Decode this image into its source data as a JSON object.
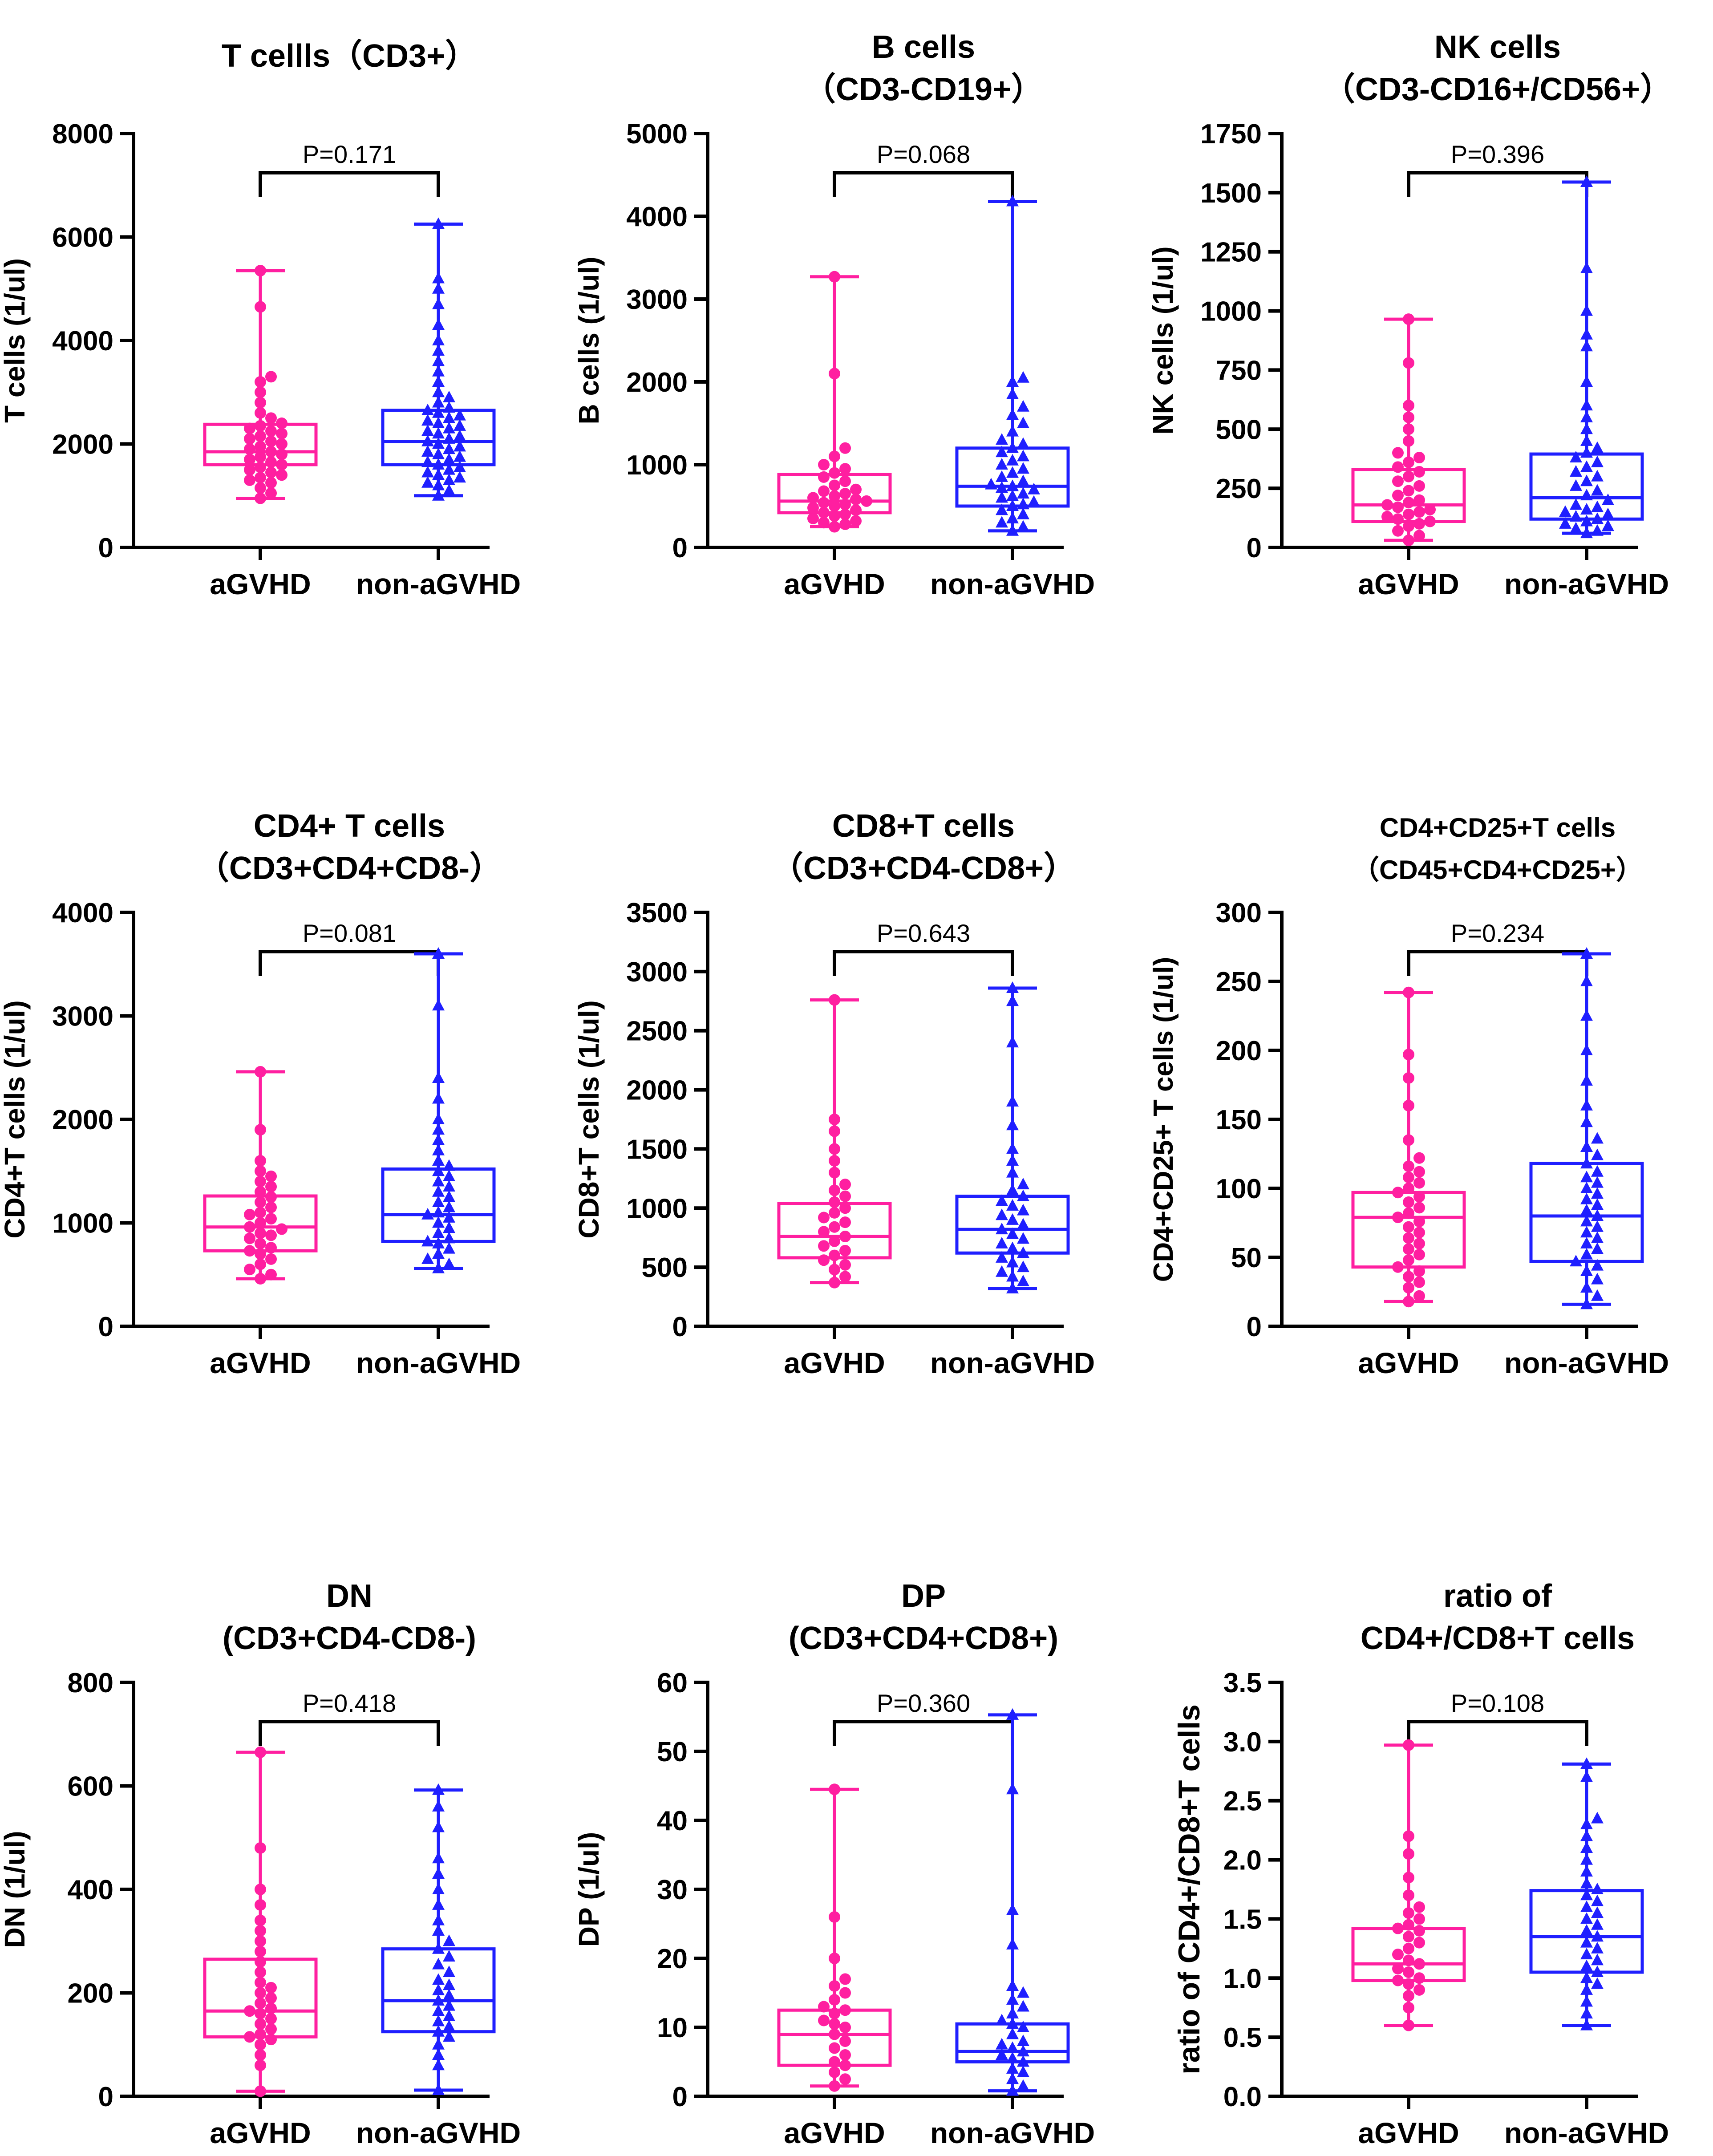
{
  "figure": {
    "groups": [
      "aGVHD",
      "non-aGVHD"
    ],
    "colors": {
      "aGVHD": "#ff1fa0",
      "non_aGVHD": "#1f1fff",
      "axis": "#000000"
    }
  },
  "chart_data": [
    {
      "type": "box",
      "title_lines": [
        "T cellls（CD3+）"
      ],
      "ylabel": "T cells (1/ul)",
      "ylim": [
        0,
        8000
      ],
      "yticks": [
        0,
        2000,
        4000,
        6000,
        8000
      ],
      "tick_labels": [
        "0",
        "2000",
        "4000",
        "6000",
        "8000"
      ],
      "p_value": "P=0.171",
      "categories": [
        "aGVHD",
        "non-aGVHD"
      ],
      "series": [
        {
          "name": "aGVHD",
          "min": 950,
          "q1": 1600,
          "median": 1850,
          "q3": 2380,
          "max": 5350,
          "points": [
            950,
            1050,
            1150,
            1250,
            1300,
            1350,
            1400,
            1450,
            1500,
            1550,
            1600,
            1650,
            1700,
            1750,
            1800,
            1850,
            1900,
            1950,
            2000,
            2050,
            2100,
            2150,
            2200,
            2250,
            2300,
            2350,
            2400,
            2500,
            2600,
            2800,
            3000,
            3200,
            3300,
            4650,
            5350
          ]
        },
        {
          "name": "non-aGVHD",
          "min": 1000,
          "q1": 1600,
          "median": 2050,
          "q3": 2650,
          "max": 6250,
          "points": [
            1000,
            1100,
            1200,
            1250,
            1300,
            1350,
            1400,
            1450,
            1500,
            1550,
            1600,
            1650,
            1700,
            1750,
            1800,
            1850,
            1900,
            1950,
            2000,
            2050,
            2100,
            2150,
            2200,
            2250,
            2300,
            2350,
            2400,
            2450,
            2500,
            2550,
            2600,
            2650,
            2700,
            2800,
            2900,
            3000,
            3200,
            3400,
            3600,
            3800,
            4000,
            4300,
            4700,
            5000,
            5200,
            6250
          ]
        }
      ]
    },
    {
      "type": "box",
      "title_lines": [
        "B cells",
        "（CD3-CD19+）"
      ],
      "ylabel": "B cells (1/ul)",
      "ylim": [
        0,
        5000
      ],
      "yticks": [
        0,
        1000,
        2000,
        3000,
        4000,
        5000
      ],
      "tick_labels": [
        "0",
        "1000",
        "2000",
        "3000",
        "4000",
        "5000"
      ],
      "p_value": "P=0.068",
      "categories": [
        "aGVHD",
        "non-aGVHD"
      ],
      "series": [
        {
          "name": "aGVHD",
          "min": 250,
          "q1": 420,
          "median": 560,
          "q3": 880,
          "max": 3270,
          "points": [
            250,
            280,
            300,
            320,
            350,
            380,
            400,
            420,
            450,
            480,
            500,
            520,
            540,
            560,
            580,
            600,
            620,
            650,
            680,
            700,
            750,
            800,
            850,
            900,
            950,
            1000,
            1100,
            1200,
            2100,
            3270
          ]
        },
        {
          "name": "non-aGVHD",
          "min": 200,
          "q1": 500,
          "median": 740,
          "q3": 1200,
          "max": 4180,
          "points": [
            200,
            250,
            300,
            350,
            400,
            450,
            500,
            520,
            550,
            600,
            620,
            650,
            700,
            720,
            740,
            760,
            800,
            850,
            900,
            950,
            1000,
            1050,
            1100,
            1150,
            1200,
            1250,
            1300,
            1400,
            1500,
            1600,
            1700,
            1850,
            2000,
            2050,
            4180
          ]
        }
      ]
    },
    {
      "type": "box",
      "title_lines": [
        "NK cells",
        "（CD3-CD16+/CD56+）"
      ],
      "ylabel": "NK cells (1/ul)",
      "ylim": [
        0,
        1750
      ],
      "yticks": [
        0,
        250,
        500,
        750,
        1000,
        1250,
        1500,
        1750
      ],
      "tick_labels": [
        "0",
        "250",
        "500",
        "750",
        "1000",
        "1250",
        "1500",
        "1750"
      ],
      "p_value": "P=0.396",
      "categories": [
        "aGVHD",
        "non-aGVHD"
      ],
      "series": [
        {
          "name": "aGVHD",
          "min": 30,
          "q1": 110,
          "median": 180,
          "q3": 330,
          "max": 965,
          "points": [
            30,
            50,
            70,
            90,
            100,
            110,
            120,
            130,
            140,
            150,
            160,
            170,
            180,
            190,
            200,
            220,
            240,
            260,
            280,
            300,
            320,
            340,
            360,
            380,
            400,
            450,
            500,
            550,
            600,
            780,
            965
          ]
        },
        {
          "name": "non-aGVHD",
          "min": 60,
          "q1": 120,
          "median": 210,
          "q3": 395,
          "max": 1545,
          "points": [
            60,
            70,
            80,
            90,
            100,
            110,
            120,
            130,
            140,
            150,
            160,
            170,
            180,
            200,
            220,
            240,
            260,
            280,
            300,
            320,
            340,
            360,
            380,
            400,
            420,
            450,
            500,
            550,
            600,
            700,
            850,
            900,
            1000,
            1180,
            1545
          ]
        }
      ]
    },
    {
      "type": "box",
      "title_lines": [
        "CD4+ T cells",
        "（CD3+CD4+CD8-）"
      ],
      "ylabel": "CD4+T cells (1/ul)",
      "ylim": [
        0,
        4000
      ],
      "yticks": [
        0,
        1000,
        2000,
        3000,
        4000
      ],
      "tick_labels": [
        "0",
        "1000",
        "2000",
        "3000",
        "4000"
      ],
      "p_value": "P=0.081",
      "categories": [
        "aGVHD",
        "non-aGVHD"
      ],
      "series": [
        {
          "name": "aGVHD",
          "min": 460,
          "q1": 730,
          "median": 960,
          "q3": 1260,
          "max": 2460,
          "points": [
            460,
            500,
            550,
            600,
            650,
            700,
            730,
            760,
            800,
            850,
            880,
            900,
            940,
            960,
            1000,
            1040,
            1080,
            1100,
            1150,
            1200,
            1250,
            1300,
            1350,
            1400,
            1450,
            1500,
            1600,
            1900,
            2460
          ]
        },
        {
          "name": "non-aGVHD",
          "min": 560,
          "q1": 820,
          "median": 1080,
          "q3": 1520,
          "max": 3600,
          "points": [
            560,
            600,
            650,
            700,
            750,
            800,
            820,
            850,
            900,
            950,
            1000,
            1050,
            1080,
            1100,
            1150,
            1200,
            1250,
            1300,
            1350,
            1400,
            1450,
            1500,
            1550,
            1600,
            1700,
            1800,
            1900,
            2000,
            2200,
            2400,
            3100,
            3600
          ]
        }
      ]
    },
    {
      "type": "box",
      "title_lines": [
        "CD8+T cells",
        "（CD3+CD4-CD8+）"
      ],
      "ylabel": "CD8+T cells (1/ul)",
      "ylim": [
        0,
        3500
      ],
      "yticks": [
        0,
        500,
        1000,
        1500,
        2000,
        2500,
        3000,
        3500
      ],
      "tick_labels": [
        "0",
        "500",
        "1000",
        "1500",
        "2000",
        "2500",
        "3000",
        "3500"
      ],
      "p_value": "P=0.643",
      "categories": [
        "aGVHD",
        "non-aGVHD"
      ],
      "series": [
        {
          "name": "aGVHD",
          "min": 370,
          "q1": 580,
          "median": 760,
          "q3": 1040,
          "max": 2760,
          "points": [
            370,
            420,
            480,
            520,
            560,
            600,
            640,
            680,
            720,
            760,
            800,
            840,
            880,
            920,
            960,
            1000,
            1050,
            1100,
            1150,
            1200,
            1300,
            1400,
            1500,
            1650,
            1750,
            2760
          ]
        },
        {
          "name": "non-aGVHD",
          "min": 320,
          "q1": 620,
          "median": 820,
          "q3": 1100,
          "max": 2860,
          "points": [
            320,
            380,
            420,
            460,
            500,
            540,
            580,
            620,
            660,
            700,
            740,
            780,
            820,
            860,
            900,
            940,
            980,
            1020,
            1060,
            1100,
            1150,
            1200,
            1300,
            1400,
            1500,
            1700,
            1900,
            2400,
            2750,
            2860
          ]
        }
      ]
    },
    {
      "type": "box",
      "title_lines": [
        "CD4+CD25+T cells",
        "（CD45+CD4+CD25+）"
      ],
      "ylabel": "CD4+CD25+ T cells (1/ul)",
      "ylim": [
        0,
        300
      ],
      "yticks": [
        0,
        50,
        100,
        150,
        200,
        250,
        300
      ],
      "tick_labels": [
        "0",
        "50",
        "100",
        "150",
        "200",
        "250",
        "300"
      ],
      "p_value": "P=0.234",
      "categories": [
        "aGVHD",
        "non-aGVHD"
      ],
      "series": [
        {
          "name": "aGVHD",
          "min": 18,
          "q1": 43,
          "median": 79,
          "q3": 97,
          "max": 242,
          "points": [
            18,
            22,
            28,
            32,
            36,
            40,
            43,
            48,
            52,
            56,
            60,
            64,
            68,
            72,
            76,
            79,
            82,
            86,
            90,
            94,
            97,
            100,
            104,
            108,
            112,
            116,
            122,
            135,
            160,
            180,
            197,
            242
          ]
        },
        {
          "name": "non-aGVHD",
          "min": 16,
          "q1": 47,
          "median": 80,
          "q3": 118,
          "max": 270,
          "points": [
            16,
            22,
            28,
            34,
            40,
            44,
            47,
            52,
            56,
            60,
            64,
            68,
            72,
            76,
            80,
            84,
            88,
            92,
            96,
            100,
            104,
            108,
            112,
            118,
            124,
            130,
            136,
            148,
            160,
            178,
            200,
            225,
            250,
            270
          ]
        }
      ]
    },
    {
      "type": "box",
      "title_lines": [
        "DN",
        "(CD3+CD4-CD8-)"
      ],
      "ylabel": "DN (1/ul)",
      "ylim": [
        0,
        800
      ],
      "yticks": [
        0,
        200,
        400,
        600,
        800
      ],
      "tick_labels": [
        "0",
        "200",
        "400",
        "600",
        "800"
      ],
      "p_value": "P=0.418",
      "categories": [
        "aGVHD",
        "non-aGVHD"
      ],
      "series": [
        {
          "name": "aGVHD",
          "min": 10,
          "q1": 115,
          "median": 165,
          "q3": 265,
          "max": 665,
          "points": [
            10,
            60,
            80,
            100,
            110,
            115,
            120,
            130,
            140,
            150,
            160,
            165,
            170,
            180,
            190,
            200,
            210,
            220,
            240,
            260,
            280,
            300,
            320,
            340,
            370,
            400,
            480,
            665
          ]
        },
        {
          "name": "non-aGVHD",
          "min": 12,
          "q1": 125,
          "median": 185,
          "q3": 285,
          "max": 592,
          "points": [
            12,
            60,
            80,
            100,
            115,
            125,
            135,
            145,
            155,
            165,
            175,
            185,
            195,
            205,
            215,
            225,
            240,
            255,
            270,
            285,
            300,
            320,
            340,
            370,
            400,
            430,
            460,
            520,
            560,
            592
          ]
        }
      ]
    },
    {
      "type": "box",
      "title_lines": [
        "DP",
        "(CD3+CD4+CD8+)"
      ],
      "ylabel": "DP (1/ul)",
      "ylim": [
        0,
        60
      ],
      "yticks": [
        0,
        10,
        20,
        30,
        40,
        50,
        60
      ],
      "tick_labels": [
        "0",
        "10",
        "20",
        "30",
        "40",
        "50",
        "60"
      ],
      "p_value": "P=0.360",
      "categories": [
        "aGVHD",
        "non-aGVHD"
      ],
      "series": [
        {
          "name": "aGVHD",
          "min": 1.5,
          "q1": 4.5,
          "median": 9,
          "q3": 12.5,
          "max": 44.5,
          "points": [
            1.5,
            2.5,
            3.5,
            4.5,
            5,
            6,
            7,
            8,
            9,
            10,
            10.5,
            11,
            12,
            12.5,
            13,
            14,
            15,
            16,
            17,
            20,
            26,
            44.5
          ]
        },
        {
          "name": "non-aGVHD",
          "min": 0.8,
          "q1": 5,
          "median": 6.5,
          "q3": 10.5,
          "max": 55.3,
          "points": [
            0.8,
            1.5,
            2.5,
            3.5,
            4,
            5,
            5.5,
            6,
            6.5,
            7,
            7.5,
            8,
            9,
            10,
            10.5,
            11,
            12,
            13,
            14,
            15,
            16,
            22,
            27,
            44.5,
            55.3
          ]
        }
      ]
    },
    {
      "type": "box",
      "title_lines": [
        "ratio of",
        "CD4+/CD8+T cells"
      ],
      "ylabel": "ratio of CD4+/CD8+T cells",
      "ylim": [
        0,
        3.5
      ],
      "yticks": [
        0,
        0.5,
        1,
        1.5,
        2,
        2.5,
        3,
        3.5
      ],
      "tick_labels": [
        "0.0",
        "0.5",
        "1.0",
        "1.5",
        "2.0",
        "2.5",
        "3.0",
        "3.5"
      ],
      "p_value": "P=0.108",
      "categories": [
        "aGVHD",
        "non-aGVHD"
      ],
      "series": [
        {
          "name": "aGVHD",
          "min": 0.6,
          "q1": 0.98,
          "median": 1.12,
          "q3": 1.42,
          "max": 2.97,
          "points": [
            0.6,
            0.75,
            0.85,
            0.9,
            0.95,
            0.98,
            1.0,
            1.05,
            1.08,
            1.12,
            1.15,
            1.2,
            1.25,
            1.3,
            1.35,
            1.4,
            1.42,
            1.45,
            1.5,
            1.55,
            1.6,
            1.7,
            1.85,
            2.05,
            2.2,
            2.97
          ]
        },
        {
          "name": "non-aGVHD",
          "min": 0.6,
          "q1": 1.05,
          "median": 1.35,
          "q3": 1.74,
          "max": 2.81,
          "points": [
            0.6,
            0.7,
            0.8,
            0.9,
            0.95,
            1.0,
            1.05,
            1.1,
            1.15,
            1.2,
            1.25,
            1.3,
            1.35,
            1.4,
            1.45,
            1.5,
            1.55,
            1.6,
            1.65,
            1.7,
            1.75,
            1.8,
            1.9,
            2.0,
            2.1,
            2.2,
            2.3,
            2.35,
            2.7,
            2.81
          ]
        }
      ]
    }
  ]
}
